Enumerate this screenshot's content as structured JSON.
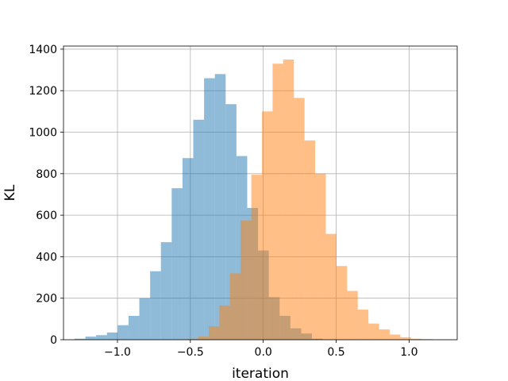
{
  "chart_data": {
    "type": "bar",
    "subtype": "overlapping-histogram",
    "title": "",
    "xlabel": "iteration",
    "ylabel": "KL",
    "xlim": [
      -1.37,
      1.33
    ],
    "ylim": [
      0,
      1415
    ],
    "xticks": [
      -1.0,
      -0.5,
      0.0,
      0.5,
      1.0
    ],
    "xtick_labels": [
      "−1.0",
      "−0.5",
      "0.0",
      "0.5",
      "1.0"
    ],
    "yticks": [
      0,
      200,
      400,
      600,
      800,
      1000,
      1200,
      1400
    ],
    "ytick_labels": [
      "0",
      "200",
      "400",
      "600",
      "800",
      "1000",
      "1200",
      "1400"
    ],
    "grid": true,
    "legend": "none",
    "series": [
      {
        "color": "#1f77b4",
        "alpha": 0.5,
        "bin_width": 0.074,
        "bins": [
          {
            "x0": -1.294,
            "count": 5
          },
          {
            "x0": -1.22,
            "count": 15
          },
          {
            "x0": -1.146,
            "count": 22
          },
          {
            "x0": -1.072,
            "count": 35
          },
          {
            "x0": -0.998,
            "count": 70
          },
          {
            "x0": -0.924,
            "count": 115
          },
          {
            "x0": -0.85,
            "count": 200
          },
          {
            "x0": -0.776,
            "count": 330
          },
          {
            "x0": -0.702,
            "count": 470
          },
          {
            "x0": -0.628,
            "count": 730
          },
          {
            "x0": -0.554,
            "count": 875
          },
          {
            "x0": -0.48,
            "count": 1060
          },
          {
            "x0": -0.406,
            "count": 1260
          },
          {
            "x0": -0.332,
            "count": 1280
          },
          {
            "x0": -0.258,
            "count": 1135
          },
          {
            "x0": -0.184,
            "count": 885
          },
          {
            "x0": -0.11,
            "count": 635
          },
          {
            "x0": -0.036,
            "count": 430
          },
          {
            "x0": 0.038,
            "count": 205
          },
          {
            "x0": 0.112,
            "count": 115
          },
          {
            "x0": 0.186,
            "count": 55
          },
          {
            "x0": 0.26,
            "count": 30
          },
          {
            "x0": 0.334,
            "count": 5
          }
        ]
      },
      {
        "color": "#ff7f0e",
        "alpha": 0.5,
        "bin_width": 0.073,
        "bins": [
          {
            "x0": -0.52,
            "count": 5
          },
          {
            "x0": -0.447,
            "count": 15
          },
          {
            "x0": -0.374,
            "count": 65
          },
          {
            "x0": -0.301,
            "count": 165
          },
          {
            "x0": -0.228,
            "count": 320
          },
          {
            "x0": -0.155,
            "count": 575
          },
          {
            "x0": -0.082,
            "count": 795
          },
          {
            "x0": -0.009,
            "count": 1100
          },
          {
            "x0": 0.064,
            "count": 1330
          },
          {
            "x0": 0.137,
            "count": 1350
          },
          {
            "x0": 0.21,
            "count": 1165
          },
          {
            "x0": 0.283,
            "count": 960
          },
          {
            "x0": 0.356,
            "count": 800
          },
          {
            "x0": 0.429,
            "count": 510
          },
          {
            "x0": 0.502,
            "count": 355
          },
          {
            "x0": 0.575,
            "count": 235
          },
          {
            "x0": 0.648,
            "count": 145
          },
          {
            "x0": 0.721,
            "count": 78
          },
          {
            "x0": 0.794,
            "count": 50
          },
          {
            "x0": 0.867,
            "count": 25
          },
          {
            "x0": 0.94,
            "count": 12
          },
          {
            "x0": 1.013,
            "count": 5
          },
          {
            "x0": 1.086,
            "count": 3
          }
        ]
      }
    ]
  }
}
